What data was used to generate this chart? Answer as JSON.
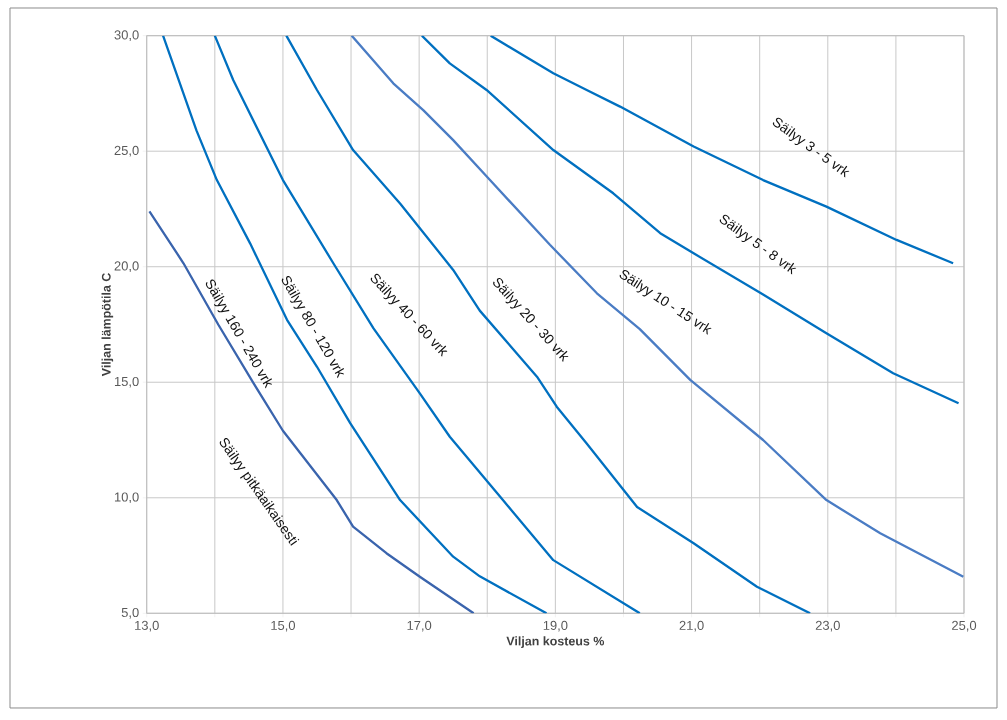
{
  "chart_data": {
    "type": "line",
    "xlabel": "Viljan kosteus %",
    "ylabel": "Viljan lämpötila C",
    "xlim": [
      13,
      25
    ],
    "ylim": [
      5,
      30
    ],
    "xticks": [
      {
        "value": 13,
        "label": "13,0"
      },
      {
        "value": 14,
        "label": null
      },
      {
        "value": 15,
        "label": "15,0"
      },
      {
        "value": 16,
        "label": null
      },
      {
        "value": 17,
        "label": "17,0"
      },
      {
        "value": 18,
        "label": null
      },
      {
        "value": 19,
        "label": "19,0"
      },
      {
        "value": 20,
        "label": null
      },
      {
        "value": 21,
        "label": "21,0"
      },
      {
        "value": 22,
        "label": null
      },
      {
        "value": 23,
        "label": "23,0"
      },
      {
        "value": 24,
        "label": null
      },
      {
        "value": 25,
        "label": "25,0"
      }
    ],
    "yticks": [
      {
        "value": 5,
        "label": "5,0"
      },
      {
        "value": 10,
        "label": "10,0"
      },
      {
        "value": 15,
        "label": "15,0"
      },
      {
        "value": 20,
        "label": "20,0"
      },
      {
        "value": 25,
        "label": "25,0"
      },
      {
        "value": 30,
        "label": "30,0"
      }
    ],
    "grid": true,
    "marker": "none",
    "line_style": "solid",
    "series": [
      {
        "color": "#3a64ad",
        "x": [
          13.04,
          13.54,
          14.05,
          14.57,
          15.0,
          15.79,
          16.03,
          16.52,
          17.01,
          17.8
        ],
        "values": [
          22.4,
          20.15,
          17.5,
          14.95,
          12.9,
          9.9,
          8.75,
          7.6,
          6.58,
          5.0
        ]
      },
      {
        "color": "#0070c0",
        "x": [
          13.24,
          13.73,
          14.03,
          14.52,
          15.06,
          15.5,
          15.99,
          16.72,
          17.5,
          17.89,
          18.87
        ],
        "values": [
          30,
          25.9,
          23.75,
          21.0,
          17.7,
          15.67,
          13.22,
          9.9,
          7.45,
          6.6,
          5.0
        ]
      },
      {
        "color": "#0070c0",
        "x": [
          14.0,
          14.27,
          15.0,
          15.74,
          16.33,
          17.01,
          17.45,
          18.19,
          18.97,
          20.24
        ],
        "values": [
          30,
          28.08,
          23.75,
          20.15,
          17.33,
          14.52,
          12.64,
          10.04,
          7.3,
          5.0
        ]
      },
      {
        "color": "#0070c0",
        "x": [
          15.05,
          15.5,
          16.03,
          16.72,
          17.5,
          17.89,
          18.73,
          19.02,
          19.46,
          20.2,
          21.03,
          21.96,
          22.74
        ],
        "values": [
          30,
          27.65,
          25.05,
          22.74,
          19.86,
          18.1,
          15.24,
          13.94,
          12.35,
          9.6,
          8.03,
          6.15,
          5.0
        ]
      },
      {
        "color": "#4a7cc4",
        "x": [
          16.01,
          16.62,
          17.06,
          17.5,
          18.04,
          18.92,
          19.61,
          20.24,
          20.98,
          22.05,
          22.98,
          23.77,
          24.99
        ],
        "values": [
          30,
          27.94,
          26.78,
          25.48,
          23.75,
          20.95,
          18.85,
          17.3,
          15.1,
          12.5,
          9.9,
          8.46,
          6.58
        ]
      },
      {
        "color": "#0070c0",
        "x": [
          17.04,
          17.45,
          17.99,
          18.97,
          19.85,
          20.54,
          21.03,
          22.05,
          22.98,
          23.96,
          24.92
        ],
        "values": [
          30,
          28.8,
          27.65,
          25.05,
          23.18,
          21.45,
          20.58,
          18.8,
          17.12,
          15.39,
          14.09
        ]
      },
      {
        "color": "#0070c0",
        "x": [
          18.05,
          18.97,
          19.46,
          19.95,
          21.03,
          22.05,
          22.98,
          24.01,
          24.84
        ],
        "values": [
          30,
          28.37,
          27.65,
          26.93,
          25.2,
          23.75,
          22.6,
          21.16,
          20.15
        ]
      }
    ],
    "annotations": [
      "Säilyy pitkäaikaisesti",
      "Säilyy 160 - 240 vrk",
      "Säilyy 80 - 120 vrk",
      "Säilyy 40 - 60 vrk",
      "Säilyy 20 - 30 vrk",
      "Säilyy 10 - 15 vrk",
      "Säilyy 5 - 8 vrk",
      "Säilyy 3 - 5 vrk"
    ]
  }
}
